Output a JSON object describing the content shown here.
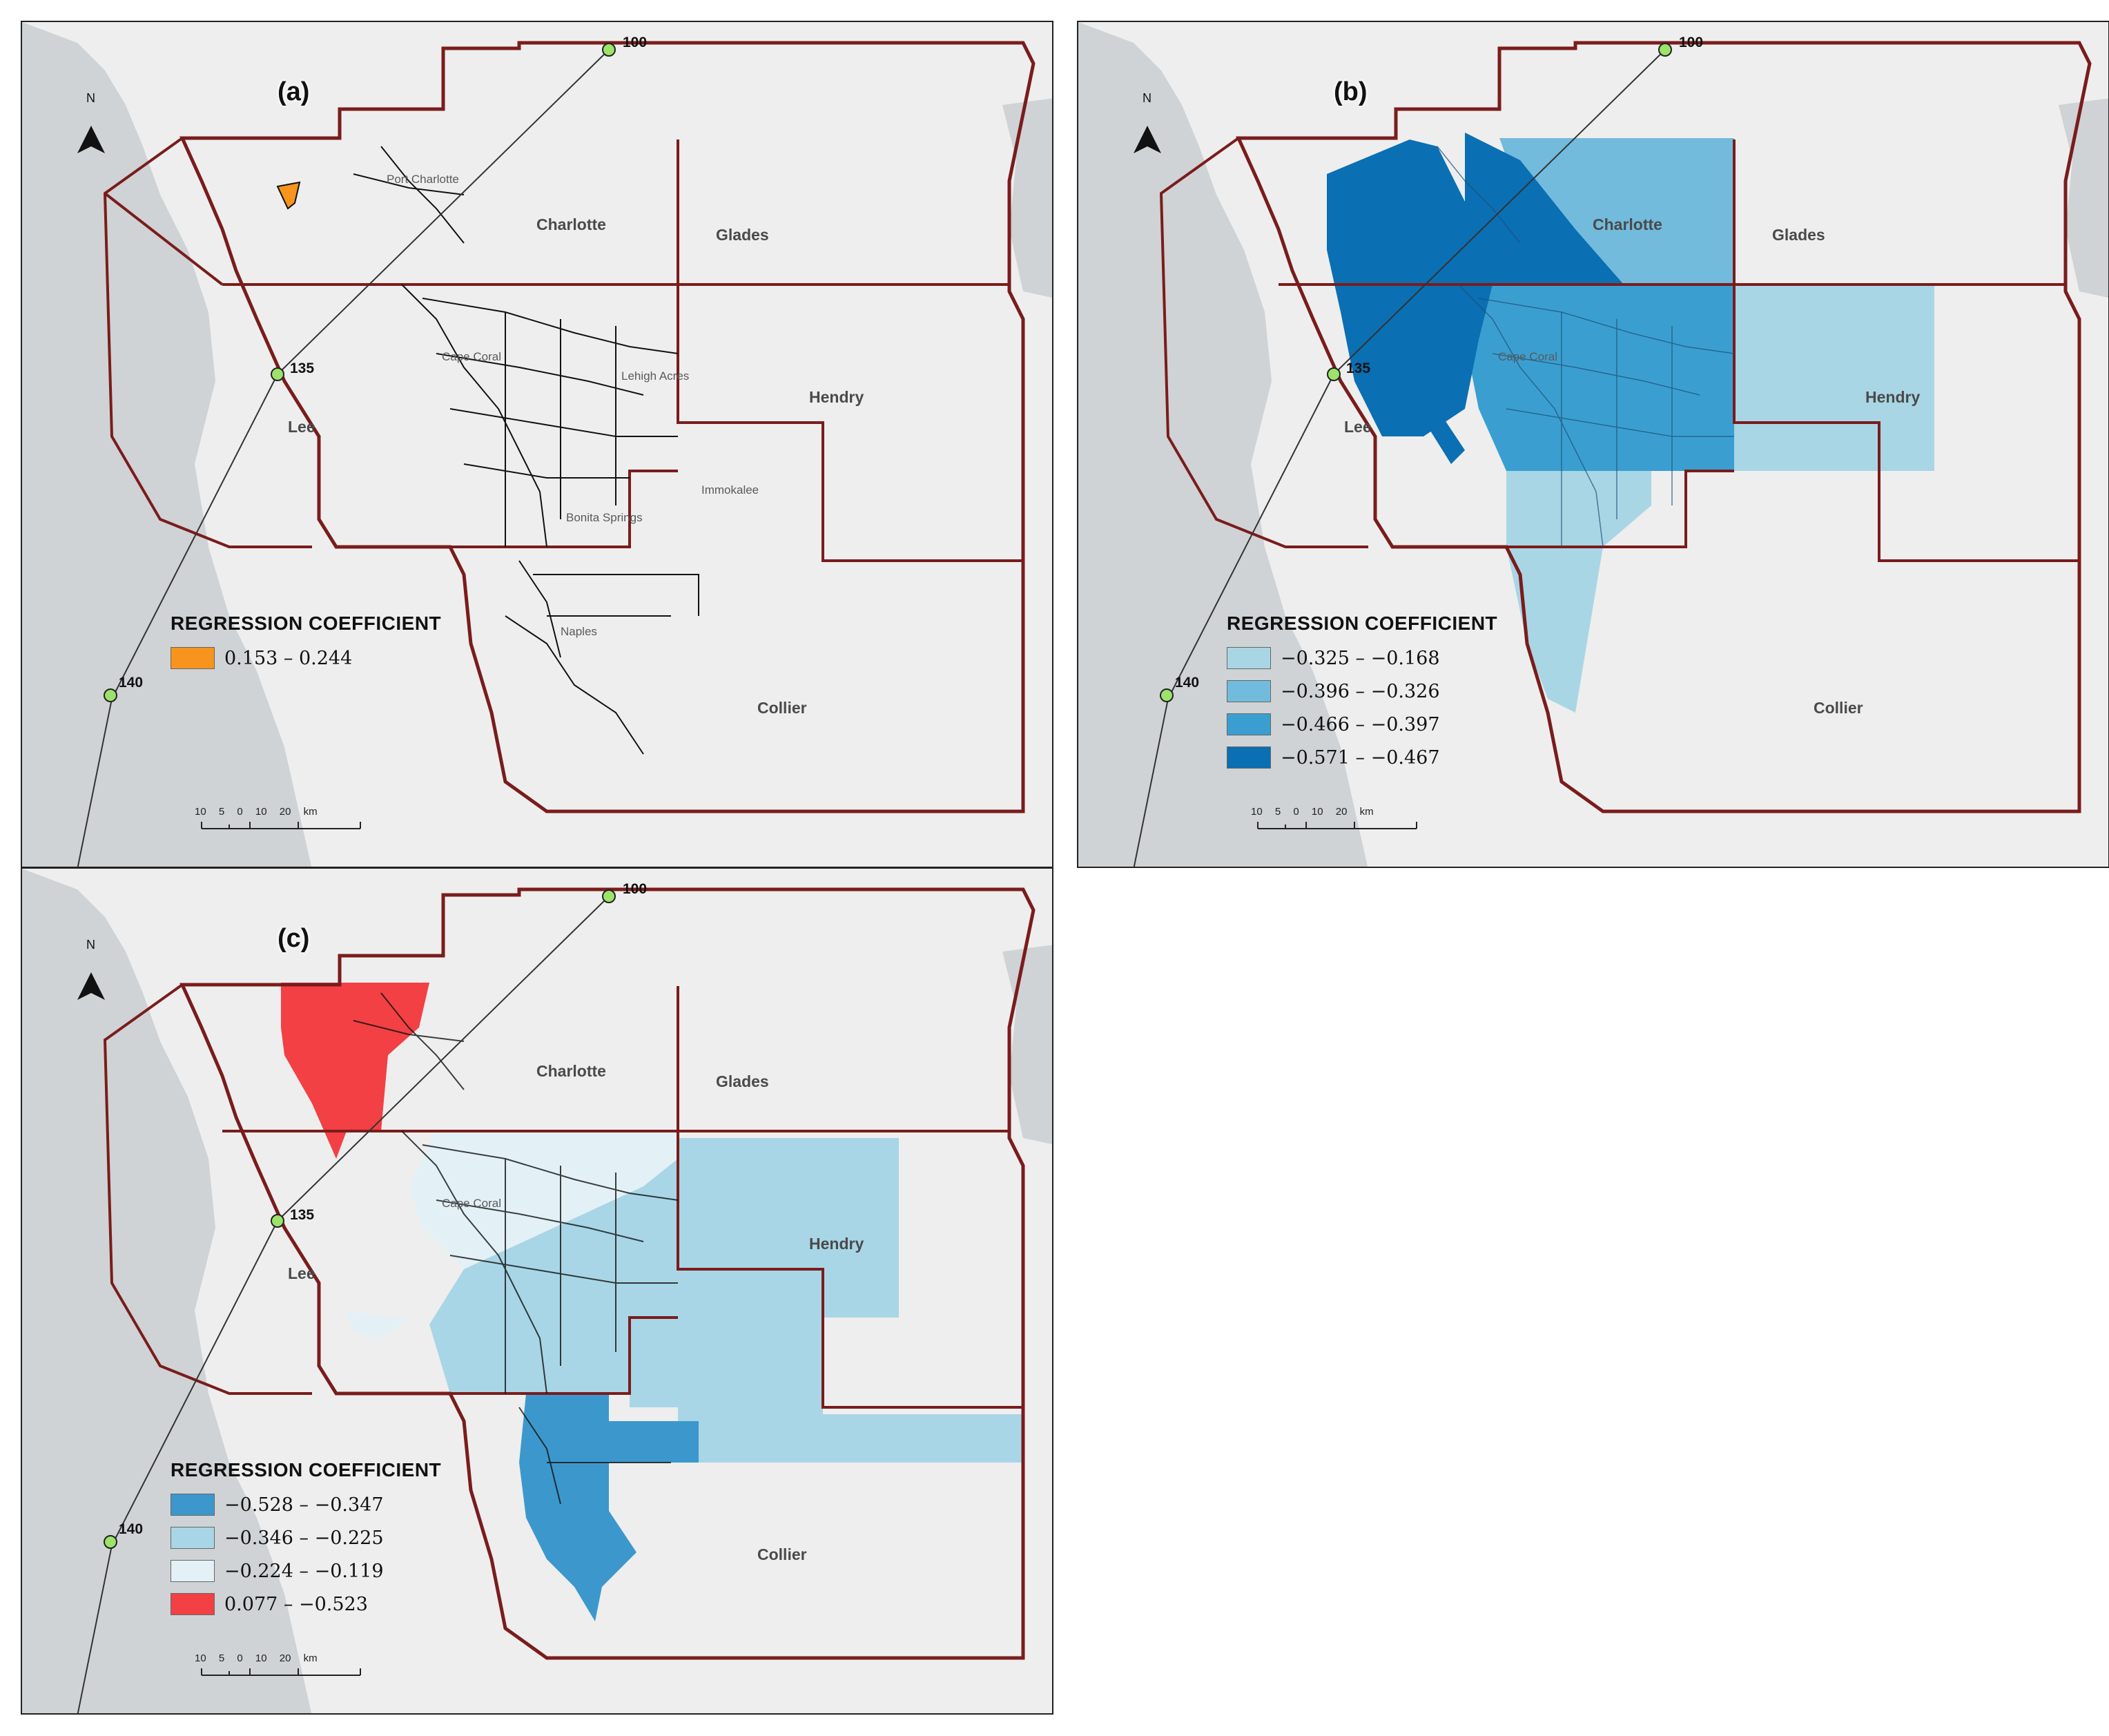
{
  "panels": [
    {
      "id": "a",
      "label": "(a)",
      "north": "N",
      "legend": {
        "title": "REGRESSION COEFFICIENT",
        "items": [
          {
            "range": "0.153 – 0.244",
            "color": "#f7941d"
          }
        ]
      }
    },
    {
      "id": "b",
      "label": "(b)",
      "north": "N",
      "legend": {
        "title": "REGRESSION COEFFICIENT",
        "items": [
          {
            "range": "−0.325 – −0.168",
            "color": "#a9d6e5"
          },
          {
            "range": "−0.396 – −0.326",
            "color": "#72bbdc"
          },
          {
            "range": "−0.466 – −0.397",
            "color": "#3a9fd0"
          },
          {
            "range": "−0.571 – −0.467",
            "color": "#0a6fb3"
          }
        ]
      }
    },
    {
      "id": "c",
      "label": "(c)",
      "north": "N",
      "legend": {
        "title": "REGRESSION COEFFICIENT",
        "items": [
          {
            "range": "−0.528 – −0.347",
            "color": "#3c98cc"
          },
          {
            "range": "−0.346 – −0.225",
            "color": "#a8d6e6"
          },
          {
            "range": "−0.224 – −0.119",
            "color": "#e3f1f7"
          },
          {
            "range": "0.077 – −0.523",
            "color": "#f24044"
          }
        ]
      }
    }
  ],
  "counties": {
    "charlotte": "Charlotte",
    "glades": "Glades",
    "hendry": "Hendry",
    "lee": "Lee",
    "collier": "Collier"
  },
  "cities": {
    "cape_coral": "Cape Coral",
    "immokalee": "Immokalee",
    "bonita_springs": "Bonita Springs",
    "naples": "Naples",
    "lehigh_acres": "Lehigh Acres",
    "port_charlotte": "Port Charlotte"
  },
  "hurricane_track": {
    "points": [
      "100",
      "135",
      "140"
    ]
  },
  "scale_bar": {
    "ticks": [
      "10",
      "5",
      "0",
      "10",
      "20 km"
    ]
  },
  "colors": {
    "county_border": "#7a1c1c",
    "land": "#eeeeee",
    "water": "#cfd3d5",
    "tract_line": "#111111",
    "track_point": "#9be36a"
  }
}
